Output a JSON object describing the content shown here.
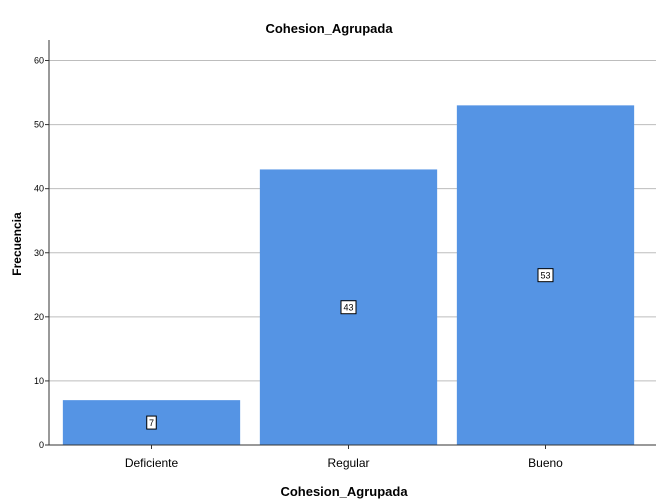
{
  "chart_data": {
    "type": "bar",
    "title": "Cohesion_Agrupada",
    "xlabel": "Cohesion_Agrupada",
    "ylabel": "Frecuencia",
    "categories": [
      "Deficiente",
      "Regular",
      "Bueno"
    ],
    "values": [
      7,
      43,
      53
    ],
    "ylim": [
      0,
      60
    ],
    "yticks": [
      0,
      10,
      20,
      30,
      40,
      50,
      60
    ],
    "grid": true,
    "bar_color": "#5594e4",
    "data_labels": true
  }
}
